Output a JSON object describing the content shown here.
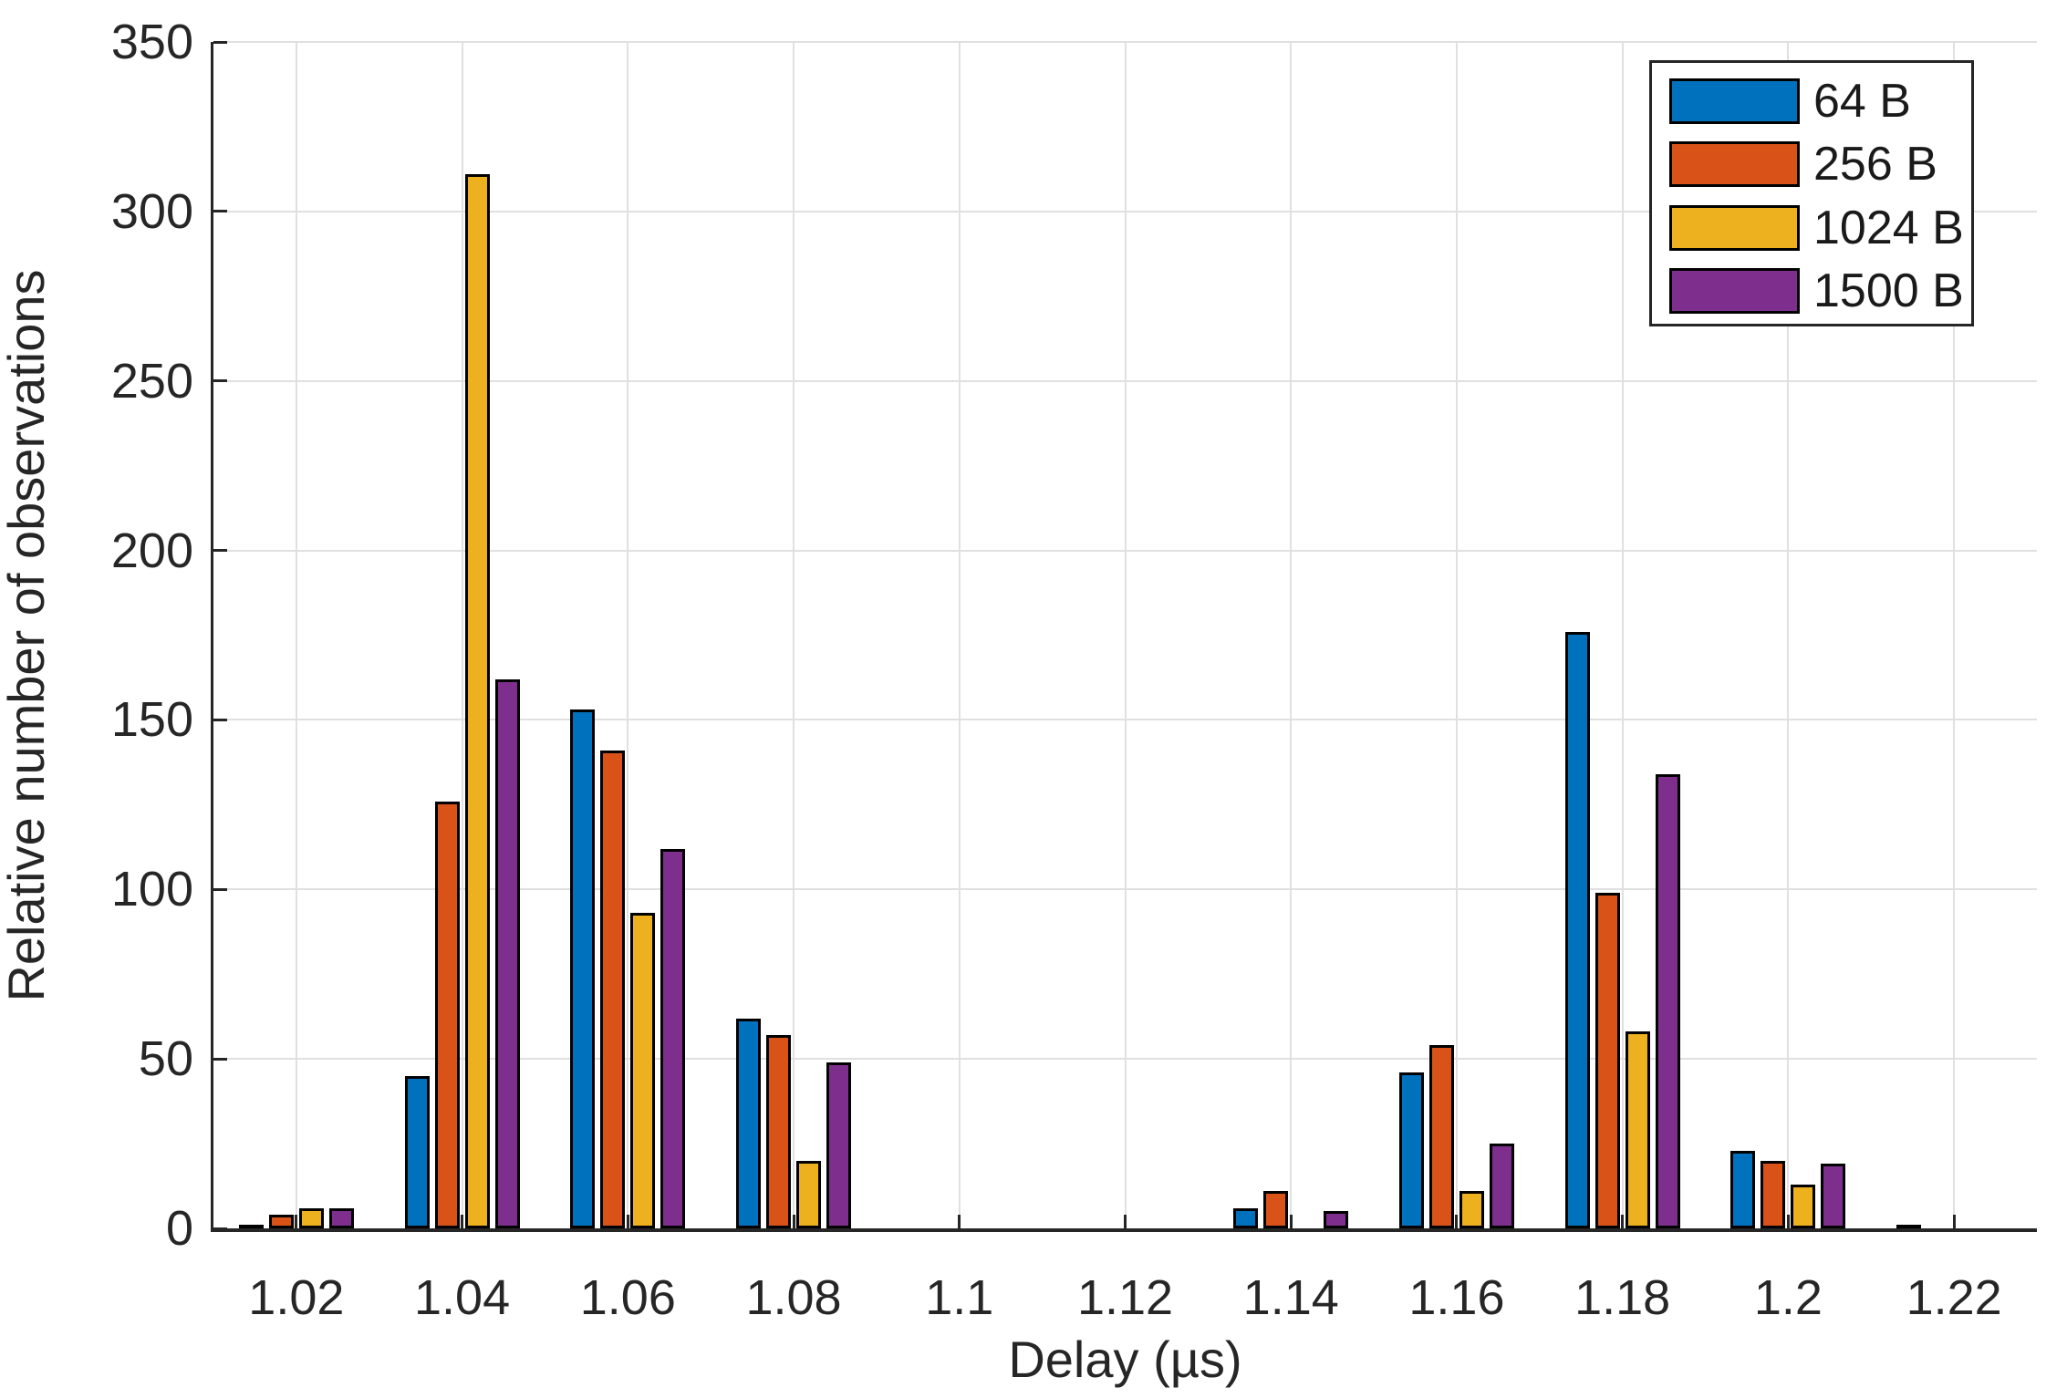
{
  "chart_data": {
    "type": "bar",
    "title": "",
    "xlabel": "Delay (µs)",
    "ylabel": "Relative number of observations",
    "categories": [
      1.02,
      1.04,
      1.06,
      1.08,
      1.1,
      1.12,
      1.14,
      1.16,
      1.18,
      1.2,
      1.22
    ],
    "x_tick_labels": [
      "1.02",
      "1.04",
      "1.06",
      "1.08",
      "1.1",
      "1.12",
      "1.14",
      "1.16",
      "1.18",
      "1.2",
      "1.22"
    ],
    "y_ticks": [
      0,
      50,
      100,
      150,
      200,
      250,
      300,
      350
    ],
    "xlim": [
      1.01,
      1.23
    ],
    "ylim": [
      0,
      350
    ],
    "grid": true,
    "legend_position": "top-right",
    "series": [
      {
        "name": "64 B",
        "color": "#0072BD",
        "values": [
          1,
          45,
          153,
          62,
          0,
          0,
          6,
          46,
          176,
          23,
          1
        ]
      },
      {
        "name": "256 B",
        "color": "#D95319",
        "values": [
          4,
          126,
          141,
          57,
          0,
          0,
          11,
          54,
          99,
          20,
          0
        ]
      },
      {
        "name": "1024 B",
        "color": "#EDB120",
        "values": [
          6,
          311,
          93,
          20,
          0,
          0,
          0,
          11,
          58,
          13,
          0
        ]
      },
      {
        "name": "1500 B",
        "color": "#7E2F8E",
        "values": [
          6,
          162,
          112,
          49,
          0,
          0,
          5,
          25,
          134,
          19,
          0
        ]
      }
    ],
    "colors": {
      "axis": "#262626",
      "grid": "#e0e0e0",
      "bar_edge": "#000000",
      "background": "#ffffff"
    }
  }
}
